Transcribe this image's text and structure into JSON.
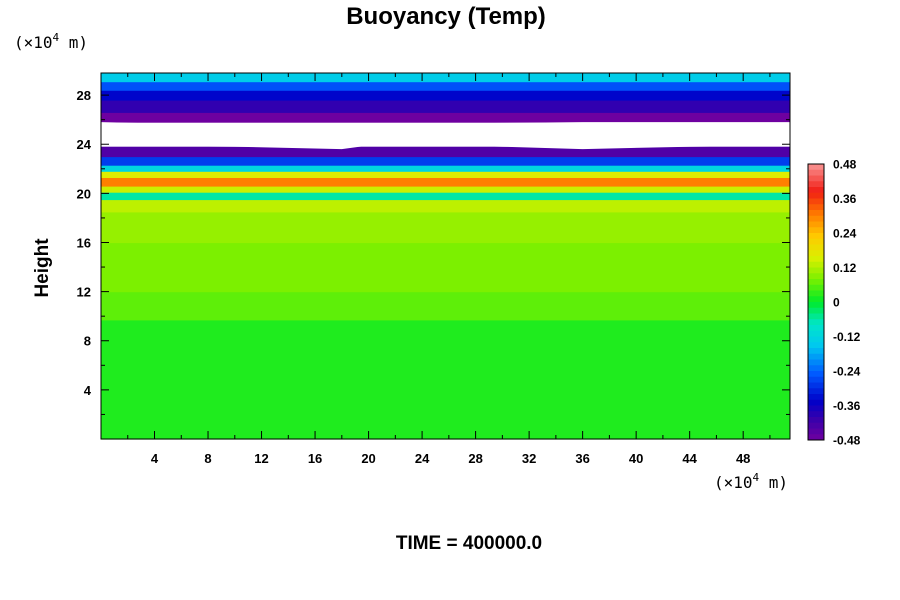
{
  "chart_data": {
    "type": "heatmap",
    "title": "Buoyancy (Temp)",
    "ylabel": "Height",
    "y_unit_prefix": "(×10",
    "y_unit_exp": "4",
    "y_unit_suffix": " m)",
    "x_unit_prefix": "(×10",
    "x_unit_exp": "4",
    "x_unit_suffix": " m)",
    "xlim": [
      0,
      51.5
    ],
    "ylim": [
      0,
      29.8
    ],
    "x_ticks": [
      4,
      8,
      12,
      16,
      20,
      24,
      28,
      32,
      36,
      40,
      44,
      48
    ],
    "y_ticks": [
      4,
      8,
      12,
      16,
      20,
      24,
      28
    ],
    "x_tick_labels": [
      "4",
      "8",
      "12",
      "16",
      "20",
      "24",
      "28",
      "32",
      "36",
      "40",
      "44",
      "48"
    ],
    "y_tick_labels": [
      "4",
      "8",
      "12",
      "16",
      "20",
      "24",
      "28"
    ],
    "colorbar": {
      "min": -0.48,
      "max": 0.48,
      "step": 0.02,
      "tick_values": [
        0.48,
        0.36,
        0.24,
        0.12,
        0,
        -0.12,
        -0.24,
        -0.36,
        -0.48
      ],
      "tick_labels": [
        "0.48",
        "0.36",
        "0.24",
        "0.12",
        "0",
        "-0.12",
        "-0.24",
        "-0.36",
        "-0.48"
      ]
    },
    "layers": [
      {
        "y0": 0,
        "y1": 9.7,
        "value": 0.02
      },
      {
        "y0": 9.7,
        "y1": 12,
        "value": 0.06
      },
      {
        "y0": 12,
        "y1": 16,
        "value": 0.08
      },
      {
        "y0": 16,
        "y1": 18.5,
        "value": 0.1
      },
      {
        "y0": 18.5,
        "y1": 19.5,
        "value": 0.13
      },
      {
        "y0": 19.5,
        "y1": 20.1,
        "value": -0.06
      },
      {
        "y0": 20.1,
        "y1": 20.6,
        "value": 0.14
      },
      {
        "y0": 20.6,
        "y1": 21.3,
        "value": 0.3
      },
      {
        "y0": 21.3,
        "y1": 21.8,
        "value": 0.16
      },
      {
        "y0": 21.8,
        "y1": 22.3,
        "value": -0.12
      },
      {
        "y0": 22.3,
        "y1": 23,
        "value": -0.28
      },
      {
        "y0": 23,
        "y1": 23.8,
        "value": -0.44
      },
      {
        "y0": 25.8,
        "y1": 26.6,
        "value": -0.48
      },
      {
        "y0": 26.6,
        "y1": 27.6,
        "value": -0.4
      },
      {
        "y0": 27.6,
        "y1": 28.4,
        "value": -0.34
      },
      {
        "y0": 28.4,
        "y1": 29.1,
        "value": -0.26
      },
      {
        "y0": 29.1,
        "y1": 29.8,
        "value": -0.14
      }
    ],
    "undefined_band": {
      "lower_edge": [
        [
          0,
          23.9
        ],
        [
          10,
          23.8
        ],
        [
          18,
          23.6
        ],
        [
          20,
          23.9
        ],
        [
          24,
          24.0
        ],
        [
          30,
          23.8
        ],
        [
          36,
          23.6
        ],
        [
          44,
          23.8
        ],
        [
          51.5,
          23.9
        ]
      ],
      "upper_edge": [
        [
          0,
          25.8
        ],
        [
          8,
          25.6
        ],
        [
          14,
          25.1
        ],
        [
          18,
          24.8
        ],
        [
          22,
          25.0
        ],
        [
          26,
          25.7
        ],
        [
          36,
          25.8
        ],
        [
          51.5,
          25.8
        ]
      ]
    },
    "time_label": "TIME = 400000.0"
  }
}
